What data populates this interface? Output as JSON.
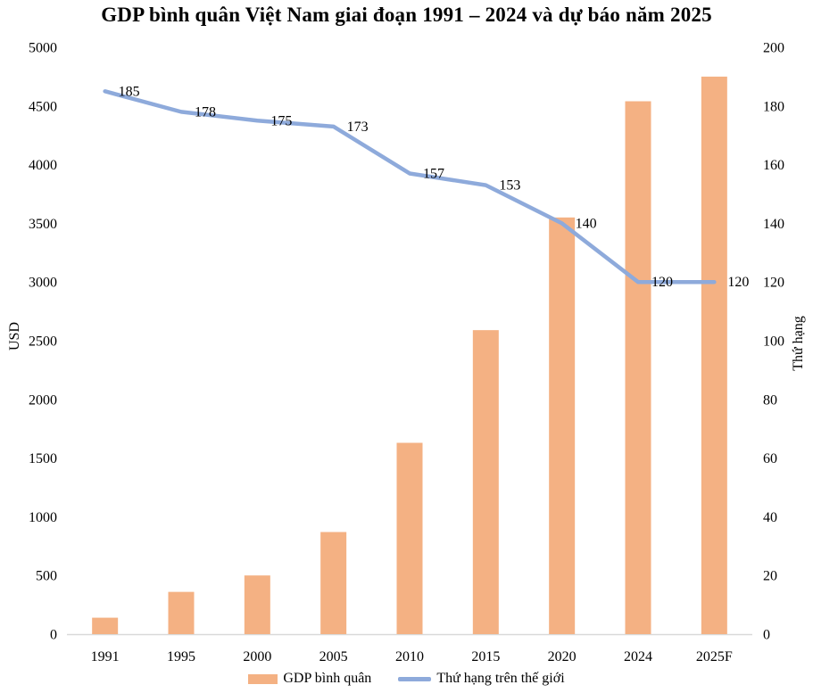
{
  "chart": {
    "title": "GDP bình quân Việt Nam giai đoạn 1991 – 2024 và dự báo năm 2025",
    "left_axis_title": "USD",
    "right_axis_title": "Thứ hạng",
    "legend": {
      "bar_label": "GDP bình quân",
      "line_label": "Thứ hạng trên thế giới"
    }
  },
  "colors": {
    "bar": "#F4B183",
    "line": "#8EAADB",
    "axis_line": "#D9D9D9",
    "text": "#000000"
  },
  "chart_data": {
    "type": "combo",
    "title": "GDP bình quân Việt Nam giai đoạn 1991 – 2024 và dự báo năm 2025",
    "categories": [
      "1991",
      "1995",
      "2000",
      "2005",
      "2010",
      "2015",
      "2020",
      "2024",
      "2025F"
    ],
    "series": [
      {
        "name": "GDP bình quân",
        "type": "bar",
        "axis": "left",
        "color": "#F4B183",
        "values": [
          140,
          360,
          500,
          870,
          1630,
          2590,
          3550,
          4540,
          4750
        ]
      },
      {
        "name": "Thứ hạng trên thế giới",
        "type": "line",
        "axis": "right",
        "color": "#8EAADB",
        "values": [
          185,
          178,
          175,
          173,
          157,
          153,
          140,
          120,
          120
        ],
        "data_labels": true
      }
    ],
    "left_axis": {
      "title": "USD",
      "min": 0,
      "max": 5000,
      "step": 500
    },
    "right_axis": {
      "title": "Thứ hạng",
      "min": 0,
      "max": 200,
      "step": 20
    },
    "grid": false,
    "legend_position": "bottom"
  }
}
